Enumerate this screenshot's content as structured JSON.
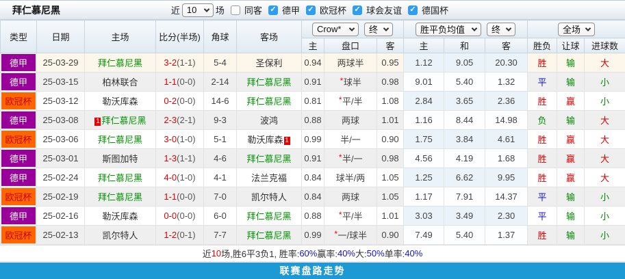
{
  "title": "拜仁慕尼黑",
  "filters": {
    "near_label": "近",
    "match_count": "10",
    "games_label": "场",
    "same_venue": {
      "label": "同客",
      "checked": false
    },
    "leagues": [
      {
        "label": "德甲",
        "checked": true
      },
      {
        "label": "欧冠杯",
        "checked": true
      },
      {
        "label": "球会友谊",
        "checked": true
      },
      {
        "label": "德国杯",
        "checked": true
      }
    ]
  },
  "selectors": {
    "bookmaker": "Crow*",
    "bookmaker_state": "终",
    "avg_type": "胜平负均值",
    "avg_state": "终",
    "scope": "全场"
  },
  "columns": {
    "type": "类型",
    "date": "日期",
    "home": "主场",
    "score": "比分(半场)",
    "corner": "角球",
    "away": "客场",
    "odds_group": [
      "主",
      "盘口",
      "客"
    ],
    "avg_group": [
      "主",
      "和",
      "客"
    ],
    "result_group": [
      "胜负",
      "让球",
      "进球数"
    ]
  },
  "rows": [
    {
      "type": "德甲",
      "date": "25-03-29",
      "home": "拜仁慕尼黑",
      "home_rc": 0,
      "score": "3-2",
      "half": "(1-1)",
      "corner": "5-4",
      "away": "圣保利",
      "away_rc": 0,
      "odds_home": "0.94",
      "handicap": "两球半",
      "handicap_star": false,
      "odds_away": "0.95",
      "avg_home": "1.12",
      "avg_draw": "9.05",
      "avg_away": "20.30",
      "result": "胜",
      "handicap_result": "输",
      "goals": "大"
    },
    {
      "type": "德甲",
      "date": "25-03-15",
      "home": "柏林联合",
      "home_rc": 0,
      "score": "1-1",
      "half": "(0-0)",
      "corner": "2-14",
      "away": "拜仁慕尼黑",
      "away_rc": 0,
      "odds_home": "0.91",
      "handicap": "球半",
      "handicap_star": true,
      "odds_away": "0.98",
      "avg_home": "9.01",
      "avg_draw": "5.40",
      "avg_away": "1.32",
      "result": "平",
      "handicap_result": "输",
      "goals": "小"
    },
    {
      "type": "欧冠杯",
      "date": "25-03-12",
      "home": "勒沃库森",
      "home_rc": 0,
      "score": "0-2",
      "half": "(0-0)",
      "corner": "14-6",
      "away": "拜仁慕尼黑",
      "away_rc": 0,
      "odds_home": "0.81",
      "handicap": "平/半",
      "handicap_star": true,
      "odds_away": "1.08",
      "avg_home": "2.84",
      "avg_draw": "3.65",
      "avg_away": "2.36",
      "result": "胜",
      "handicap_result": "赢",
      "goals": "小"
    },
    {
      "type": "德甲",
      "date": "25-03-08",
      "home": "拜仁慕尼黑",
      "home_rc": 1,
      "score": "2-3",
      "half": "(2-1)",
      "corner": "9-3",
      "away": "波鸿",
      "away_rc": 0,
      "odds_home": "0.88",
      "handicap": "两球",
      "handicap_star": false,
      "odds_away": "1.01",
      "avg_home": "1.16",
      "avg_draw": "8.44",
      "avg_away": "14.98",
      "result": "负",
      "handicap_result": "输",
      "goals": "大"
    },
    {
      "type": "欧冠杯",
      "date": "25-03-06",
      "home": "拜仁慕尼黑",
      "home_rc": 0,
      "score": "3-0",
      "half": "(1-0)",
      "corner": "5-1",
      "away": "勒沃库森",
      "away_rc": 1,
      "odds_home": "0.99",
      "handicap": "半/一",
      "handicap_star": false,
      "odds_away": "0.90",
      "avg_home": "1.75",
      "avg_draw": "3.84",
      "avg_away": "4.61",
      "result": "胜",
      "handicap_result": "赢",
      "goals": "大"
    },
    {
      "type": "德甲",
      "date": "25-03-01",
      "home": "斯图加特",
      "home_rc": 0,
      "score": "1-3",
      "half": "(1-1)",
      "corner": "4-6",
      "away": "拜仁慕尼黑",
      "away_rc": 0,
      "odds_home": "0.91",
      "handicap": "半/一",
      "handicap_star": true,
      "odds_away": "0.98",
      "avg_home": "4.56",
      "avg_draw": "4.19",
      "avg_away": "1.68",
      "result": "胜",
      "handicap_result": "赢",
      "goals": "大"
    },
    {
      "type": "德甲",
      "date": "25-02-24",
      "home": "拜仁慕尼黑",
      "home_rc": 0,
      "score": "4-0",
      "half": "(1-0)",
      "corner": "4-1",
      "away": "法兰克福",
      "away_rc": 0,
      "odds_home": "0.84",
      "handicap": "球半/两",
      "handicap_star": false,
      "odds_away": "1.05",
      "avg_home": "1.25",
      "avg_draw": "6.62",
      "avg_away": "9.95",
      "result": "胜",
      "handicap_result": "赢",
      "goals": "大"
    },
    {
      "type": "欧冠杯",
      "date": "25-02-19",
      "home": "拜仁慕尼黑",
      "home_rc": 0,
      "score": "1-1",
      "half": "(0-0)",
      "corner": "7-0",
      "away": "凯尔特人",
      "away_rc": 0,
      "odds_home": "0.84",
      "handicap": "两球",
      "handicap_star": false,
      "odds_away": "1.05",
      "avg_home": "1.17",
      "avg_draw": "7.91",
      "avg_away": "14.37",
      "result": "平",
      "handicap_result": "输",
      "goals": "小"
    },
    {
      "type": "德甲",
      "date": "25-02-16",
      "home": "勒沃库森",
      "home_rc": 0,
      "score": "0-0",
      "half": "(0-0)",
      "corner": "6-0",
      "away": "拜仁慕尼黑",
      "away_rc": 0,
      "odds_home": "0.88",
      "handicap": "平/半",
      "handicap_star": true,
      "odds_away": "1.01",
      "avg_home": "3.03",
      "avg_draw": "3.49",
      "avg_away": "2.30",
      "result": "平",
      "handicap_result": "输",
      "goals": "小"
    },
    {
      "type": "欧冠杯",
      "date": "25-02-13",
      "home": "凯尔特人",
      "home_rc": 0,
      "score": "1-2",
      "half": "(0-1)",
      "corner": "7-7",
      "away": "拜仁慕尼黑",
      "away_rc": 0,
      "odds_home": "0.99",
      "handicap": "一/球半",
      "handicap_star": true,
      "odds_away": "0.90",
      "avg_home": "7.49",
      "avg_draw": "5.40",
      "avg_away": "1.37",
      "result": "胜",
      "handicap_result": "输",
      "goals": "小"
    }
  ],
  "summary": {
    "segments": [
      {
        "t": "近",
        "c": "k"
      },
      {
        "t": "10",
        "c": "r"
      },
      {
        "t": "场,胜6平3负1, 胜率:",
        "c": "k"
      },
      {
        "t": "60%",
        "c": "b"
      },
      {
        "t": " 赢率:",
        "c": "k"
      },
      {
        "t": "40%",
        "c": "b"
      },
      {
        "t": " 大:",
        "c": "k"
      },
      {
        "t": "50%",
        "c": "b"
      },
      {
        "t": " 单率:",
        "c": "k"
      },
      {
        "t": "40%",
        "c": "b"
      }
    ]
  },
  "footer": {
    "label": "联赛盘路走势"
  },
  "colors": {
    "league_de": "#990099",
    "league_cl": "#ff6600",
    "bayern_green": "#019501",
    "score_red": "#e60000",
    "win_red": "#d90000",
    "draw_blue": "#1414cc",
    "lose_green": "#028a02",
    "footer_blue": "#1d9ad3",
    "checkbox_blue": "#2f9df0"
  },
  "semantic": {
    "team_key_green": "拜仁慕尼黑",
    "league_color_map": {
      "德甲": "lg-purple",
      "欧冠杯": "lg-orange"
    },
    "result_color_map": {
      "胜": "c-red",
      "平": "c-blue",
      "负": "c-green",
      "赢": "c-red",
      "输": "c-green",
      "大": "c-red",
      "小": "c-green"
    }
  }
}
